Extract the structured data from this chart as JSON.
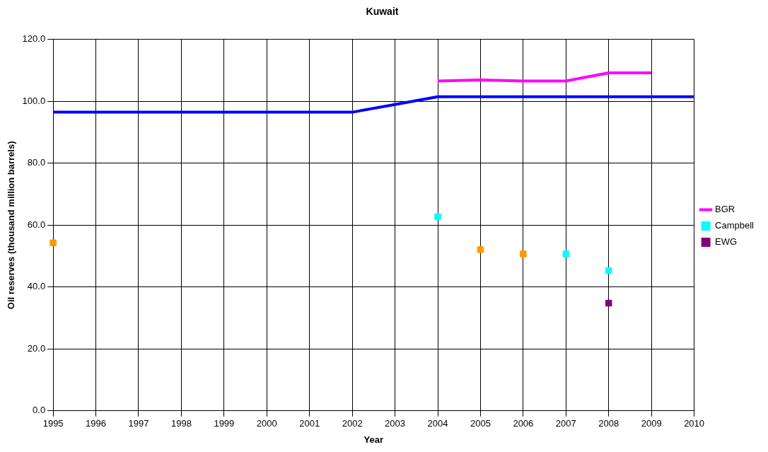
{
  "chart_data": {
    "type": "line",
    "title": "Kuwait",
    "xlabel": "Year",
    "ylabel": "Oil reserves (thousand million barrels)",
    "x": [
      1995,
      1996,
      1997,
      1998,
      1999,
      2000,
      2001,
      2002,
      2003,
      2004,
      2005,
      2006,
      2007,
      2008,
      2009,
      2010
    ],
    "xlim": [
      1995,
      2010
    ],
    "xticks": [
      1995,
      1996,
      1997,
      1998,
      1999,
      2000,
      2001,
      2002,
      2003,
      2004,
      2005,
      2006,
      2007,
      2008,
      2009,
      2010
    ],
    "ylim": [
      0,
      120
    ],
    "yticks": [
      {
        "value": 0,
        "label": "0.0"
      },
      {
        "value": 20,
        "label": "20.0"
      },
      {
        "value": 40,
        "label": "40.0"
      },
      {
        "value": 60,
        "label": "60.0"
      },
      {
        "value": 80,
        "label": "80.0"
      },
      {
        "value": 100,
        "label": "100.0"
      },
      {
        "value": 120,
        "label": "120.0"
      }
    ],
    "grid": true,
    "legend": "right",
    "series": [
      {
        "type": "line",
        "color": "#0000ff",
        "marker": "none",
        "values": [
          96.5,
          96.5,
          96.5,
          96.5,
          96.5,
          96.5,
          96.5,
          96.5,
          99.0,
          101.5,
          101.5,
          101.5,
          101.5,
          101.5,
          101.5,
          101.5
        ]
      },
      {
        "type": "line",
        "name": "BGR",
        "color": "#ff00ff",
        "marker": "none",
        "x": [
          2004,
          2005,
          2006,
          2007,
          2008,
          2009
        ],
        "values": [
          106.6,
          106.9,
          106.6,
          106.6,
          109.2,
          109.2
        ]
      },
      {
        "type": "scatter",
        "color": "#ff9900",
        "marker": "square",
        "x": [
          1995,
          2005,
          2006
        ],
        "values": [
          54.3,
          52.1,
          50.7
        ]
      },
      {
        "type": "scatter",
        "name": "Campbell",
        "color": "#00ffff",
        "marker": "square",
        "x": [
          2004,
          2007,
          2008
        ],
        "values": [
          62.7,
          50.7,
          45.3
        ]
      },
      {
        "type": "scatter",
        "name": "EWG",
        "color": "#800080",
        "marker": "square",
        "x": [
          2008
        ],
        "values": [
          34.8
        ]
      }
    ]
  }
}
